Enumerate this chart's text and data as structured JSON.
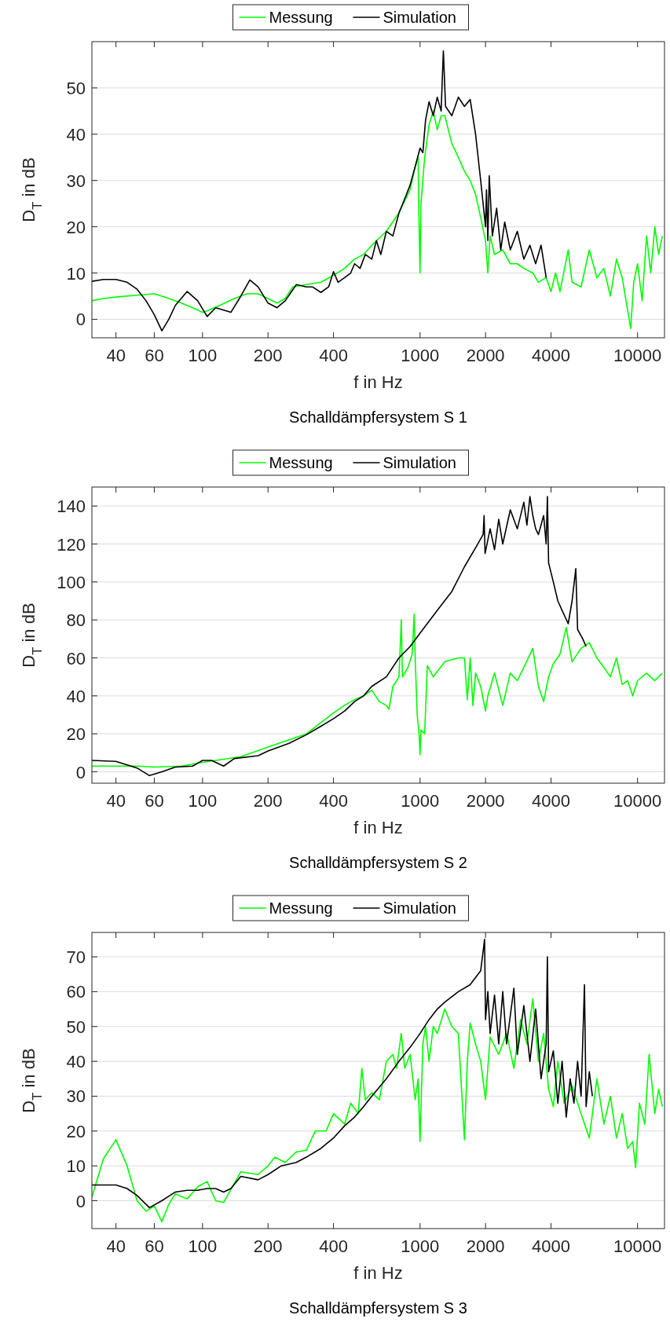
{
  "chart_data": [
    {
      "type": "line",
      "title": "Schalldämpfersystem S 1",
      "xlabel": "f in Hz",
      "ylabel": "D$_{T}$ in dB",
      "log": "x",
      "grid": "y",
      "legend": "top",
      "xlim": [
        31,
        13300
      ],
      "xticks": [
        40,
        60,
        100,
        200,
        400,
        1000,
        2000,
        4000,
        10000
      ],
      "ylim": [
        -4,
        60
      ],
      "yticks": [
        0,
        10,
        20,
        30,
        40,
        50
      ],
      "series": [
        {
          "name": "Messung",
          "color": "#00ff00",
          "x": [
            31,
            35,
            40,
            50,
            60,
            65,
            70,
            80,
            90,
            100,
            105,
            120,
            140,
            160,
            180,
            200,
            220,
            240,
            260,
            300,
            350,
            400,
            450,
            500,
            550,
            600,
            700,
            800,
            900,
            950,
            980,
            990,
            1000,
            1010,
            1050,
            1100,
            1150,
            1200,
            1250,
            1300,
            1400,
            1500,
            1600,
            1700,
            1800,
            1900,
            2000,
            2050,
            2100,
            2200,
            2400,
            2600,
            2800,
            3000,
            3300,
            3500,
            3800,
            4000,
            4200,
            4400,
            4800,
            5000,
            5500,
            6000,
            6500,
            7000,
            7500,
            8000,
            8500,
            9000,
            9300,
            9600,
            10000,
            10500,
            11000,
            11500,
            12000,
            12500,
            13000
          ],
          "values": [
            4,
            4.5,
            4.8,
            5.2,
            5.5,
            5,
            4.5,
            3.5,
            2.5,
            1.5,
            1.8,
            3,
            4.5,
            5.5,
            5.5,
            4.5,
            3.5,
            4.5,
            7,
            7.5,
            8,
            9.5,
            11,
            13,
            14,
            16,
            19,
            23,
            28,
            33,
            35,
            20,
            10,
            25,
            35,
            42,
            45,
            41,
            44,
            44,
            38,
            35,
            32,
            30,
            27,
            22,
            17,
            10,
            18,
            14,
            15,
            12,
            12,
            11,
            10,
            8,
            9,
            6,
            10,
            6,
            15,
            8,
            7,
            15,
            9,
            11,
            5,
            13,
            9,
            2,
            -2,
            8,
            12,
            4,
            18,
            10,
            20,
            14,
            18
          ]
        },
        {
          "name": "Simulation",
          "color": "#000000",
          "x": [
            31,
            35,
            40,
            45,
            50,
            55,
            60,
            65,
            70,
            75,
            85,
            95,
            105,
            115,
            125,
            135,
            150,
            165,
            180,
            200,
            220,
            240,
            270,
            300,
            320,
            350,
            380,
            400,
            420,
            450,
            480,
            500,
            530,
            560,
            600,
            630,
            660,
            700,
            750,
            800,
            850,
            900,
            950,
            1000,
            1030,
            1060,
            1100,
            1150,
            1200,
            1250,
            1280,
            1310,
            1400,
            1500,
            1600,
            1700,
            1800,
            1900,
            2000,
            2020,
            2050,
            2080,
            2150,
            2250,
            2350,
            2450,
            2600,
            2800,
            3000,
            3200,
            3400,
            3600,
            3800
          ],
          "values": [
            8.2,
            8.6,
            8.6,
            8,
            6.5,
            4,
            1,
            -2.5,
            0,
            3,
            6,
            4,
            0.6,
            2.5,
            2,
            1.5,
            5,
            8.5,
            7,
            3.5,
            2.5,
            4,
            7.5,
            7,
            7,
            5.8,
            7,
            10.3,
            8,
            9,
            10,
            12,
            11,
            14,
            13,
            17,
            14,
            19,
            18,
            23,
            26,
            29,
            33,
            37,
            36,
            43,
            47,
            44,
            48,
            45,
            58,
            46,
            44,
            48,
            46,
            47.5,
            40,
            30,
            20,
            28,
            17,
            31,
            18,
            24,
            15,
            21,
            15,
            19,
            13,
            16,
            12,
            16,
            9
          ]
        }
      ]
    },
    {
      "type": "line",
      "title": "Schalldämpfersystem S 2",
      "xlabel": "f in Hz",
      "ylabel": "D$_{T}$ in dB",
      "log": "x",
      "grid": "y",
      "legend": "top",
      "xlim": [
        31,
        13300
      ],
      "xticks": [
        40,
        60,
        100,
        200,
        400,
        1000,
        2000,
        4000,
        10000
      ],
      "ylim": [
        -6,
        150
      ],
      "yticks": [
        0,
        20,
        40,
        60,
        80,
        100,
        120,
        140
      ],
      "series": [
        {
          "name": "Messung",
          "color": "#00ff00",
          "x": [
            31,
            40,
            50,
            60,
            80,
            100,
            150,
            200,
            300,
            400,
            450,
            500,
            550,
            600,
            650,
            700,
            720,
            750,
            780,
            800,
            820,
            830,
            880,
            920,
            940,
            950,
            970,
            990,
            1000,
            1010,
            1050,
            1080,
            1150,
            1300,
            1500,
            1600,
            1650,
            1700,
            1750,
            1800,
            1900,
            2000,
            2050,
            2200,
            2400,
            2600,
            2800,
            3000,
            3300,
            3500,
            3700,
            3900,
            4100,
            4400,
            4700,
            5000,
            5500,
            6000,
            6500,
            7000,
            7500,
            8000,
            8500,
            9000,
            9500,
            10000,
            11000,
            12000,
            13000
          ],
          "values": [
            3,
            3,
            3,
            2.5,
            3,
            5,
            8,
            13,
            20,
            31,
            35,
            38,
            40,
            43,
            37,
            35,
            33,
            45,
            48,
            50,
            80,
            50,
            55,
            62,
            83,
            60,
            30,
            20,
            9,
            22,
            20,
            56,
            50,
            58,
            60,
            60,
            38,
            60,
            35,
            52,
            45,
            32,
            40,
            52,
            35,
            52,
            48,
            55,
            65,
            45,
            37,
            50,
            57,
            62,
            76,
            58,
            65,
            68,
            60,
            55,
            50,
            60,
            46,
            48,
            40,
            48,
            52,
            48,
            52
          ]
        },
        {
          "name": "Simulation",
          "color": "#000000",
          "x": [
            31,
            40,
            50,
            57,
            65,
            75,
            90,
            100,
            110,
            125,
            140,
            180,
            200,
            250,
            300,
            350,
            400,
            450,
            500,
            550,
            600,
            700,
            800,
            900,
            1000,
            1200,
            1400,
            1600,
            1800,
            1950,
            1970,
            1990,
            2100,
            2200,
            2300,
            2400,
            2600,
            2800,
            3000,
            3100,
            3200,
            3300,
            3400,
            3500,
            3700,
            3800,
            3850,
            3900,
            4100,
            4300,
            4500,
            4800,
            5000,
            5200,
            5300,
            5600,
            5800
          ],
          "values": [
            6,
            5.5,
            2,
            -2,
            0,
            2.5,
            3,
            6,
            6,
            3,
            7,
            8.5,
            11,
            15,
            19.5,
            24,
            28,
            32,
            37,
            40,
            45,
            50,
            60,
            66,
            73,
            85,
            95,
            108,
            118,
            125,
            135,
            115,
            128,
            117,
            133,
            120,
            138,
            128,
            142,
            130,
            145,
            135,
            128,
            125,
            135,
            120,
            145,
            110,
            100,
            90,
            85,
            78,
            90,
            107,
            75,
            70,
            66
          ]
        }
      ]
    },
    {
      "type": "line",
      "title": "Schalldämpfersystem S 3",
      "xlabel": "f in Hz",
      "ylabel": "D$_{T}$ in dB",
      "log": "x",
      "grid": "y",
      "legend": "top",
      "xlim": [
        31,
        13300
      ],
      "xticks": [
        40,
        60,
        100,
        200,
        400,
        1000,
        2000,
        4000,
        10000
      ],
      "ylim": [
        -8,
        77
      ],
      "yticks": [
        0,
        10,
        20,
        30,
        40,
        50,
        60,
        70
      ],
      "series": [
        {
          "name": "Messung",
          "color": "#00ff00",
          "x": [
            31,
            35,
            40,
            45,
            50,
            55,
            60,
            65,
            70,
            75,
            85,
            95,
            105,
            115,
            125,
            140,
            150,
            180,
            200,
            215,
            240,
            270,
            300,
            330,
            370,
            400,
            450,
            480,
            520,
            540,
            560,
            600,
            650,
            700,
            750,
            780,
            820,
            850,
            900,
            950,
            980,
            1000,
            1030,
            1060,
            1100,
            1150,
            1200,
            1300,
            1400,
            1500,
            1600,
            1650,
            1700,
            1800,
            1900,
            2000,
            2100,
            2300,
            2500,
            2700,
            2900,
            3100,
            3300,
            3500,
            3700,
            3900,
            4100,
            4300,
            4600,
            5000,
            5500,
            6000,
            6500,
            7000,
            7500,
            8000,
            8500,
            9000,
            9500,
            9800,
            10200,
            10800,
            11300,
            12000,
            12500,
            13000
          ],
          "values": [
            1,
            12,
            17.5,
            10,
            0,
            -3,
            -1.5,
            -6,
            -1,
            2,
            0.5,
            4,
            5.5,
            0,
            -0.5,
            5,
            8.3,
            7.5,
            10,
            12.5,
            11,
            14,
            14.5,
            20,
            20,
            25,
            22,
            28,
            25,
            38,
            29,
            31,
            29,
            40,
            42,
            38,
            48,
            38,
            42,
            29,
            35,
            17,
            45,
            50,
            40,
            50,
            48,
            55,
            50,
            48,
            17.5,
            40,
            51,
            45,
            40,
            29,
            47,
            42,
            48,
            38,
            52,
            45,
            58,
            40,
            48,
            32,
            27,
            40,
            28,
            33,
            25,
            18,
            35,
            22,
            30,
            18,
            25,
            15,
            17,
            9.5,
            28,
            22,
            42,
            25,
            32,
            27
          ]
        },
        {
          "name": "Simulation",
          "color": "#000000",
          "x": [
            31,
            40,
            45,
            50,
            57,
            65,
            75,
            85,
            95,
            105,
            115,
            125,
            135,
            150,
            180,
            200,
            230,
            270,
            300,
            350,
            400,
            450,
            500,
            550,
            600,
            700,
            800,
            900,
            1000,
            1100,
            1200,
            1300,
            1500,
            1700,
            1900,
            1980,
            2000,
            2050,
            2100,
            2200,
            2300,
            2400,
            2500,
            2700,
            2800,
            3000,
            3200,
            3400,
            3600,
            3800,
            3850,
            3900,
            4100,
            4300,
            4500,
            4700,
            4900,
            5100,
            5300,
            5500,
            5700,
            5800,
            6000,
            6200
          ],
          "values": [
            4.5,
            4.5,
            3.5,
            1.5,
            -2,
            0,
            2.5,
            3,
            3,
            3.5,
            3.5,
            2.5,
            3.5,
            7,
            6,
            7.5,
            10,
            11,
            12.5,
            15,
            18,
            21.5,
            24,
            27,
            30,
            35,
            40,
            44,
            48,
            52,
            55,
            57,
            60,
            62,
            66,
            75,
            52,
            60,
            48,
            59,
            45,
            60,
            45,
            61,
            42,
            56,
            40,
            55,
            35,
            45,
            70,
            37,
            43,
            28,
            40,
            24,
            35,
            28,
            40,
            30,
            62,
            27,
            37,
            30
          ]
        }
      ]
    }
  ]
}
